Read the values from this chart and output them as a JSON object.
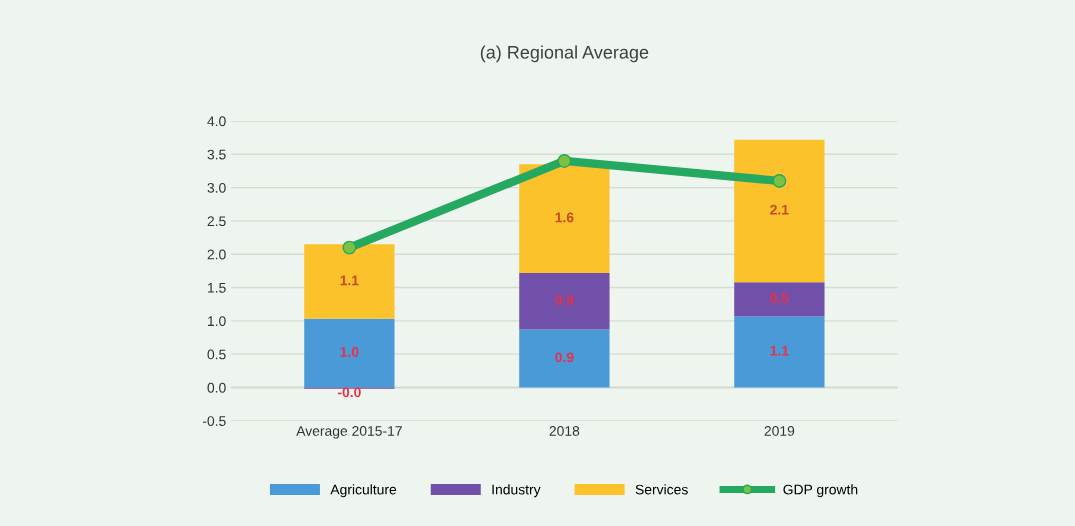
{
  "chart_data": {
    "type": "bar",
    "title": "(a) Regional Average",
    "stacked": true,
    "categories": [
      "Average 2015-17",
      "2018",
      "2019"
    ],
    "series": [
      {
        "name": "Agriculture",
        "color": "#4a9ad8",
        "values": [
          1.03,
          0.87,
          1.07
        ],
        "value_labels": [
          "1.0",
          "0.9",
          "1.1"
        ]
      },
      {
        "name": "Industry",
        "color": "#7050a8",
        "values": [
          -0.02,
          0.85,
          0.51
        ],
        "value_labels": [
          "-0.0",
          "0.9",
          "0.5"
        ]
      },
      {
        "name": "Services",
        "color": "#fcc22c",
        "values": [
          1.12,
          1.63,
          2.14
        ],
        "value_labels": [
          "1.1",
          "1.6",
          "2.1"
        ]
      },
      {
        "name": "GDP growth",
        "type": "line",
        "color": "#25a860",
        "values": [
          2.1,
          3.4,
          3.1
        ]
      }
    ],
    "ylim": [
      -0.5,
      4.0
    ],
    "yticks": [
      {
        "value": -0.5,
        "label": "-0.5"
      },
      {
        "value": 0,
        "label": "0.0"
      },
      0.5,
      {
        "value": 1,
        "label": "1.0"
      },
      1.5,
      {
        "value": 2,
        "label": "2.0"
      },
      2.5,
      {
        "value": 3,
        "label": "3.0"
      },
      3.5,
      {
        "value": 4,
        "label": "4.0"
      }
    ],
    "grid": "y",
    "legend": "bottom",
    "marker": "circle"
  }
}
